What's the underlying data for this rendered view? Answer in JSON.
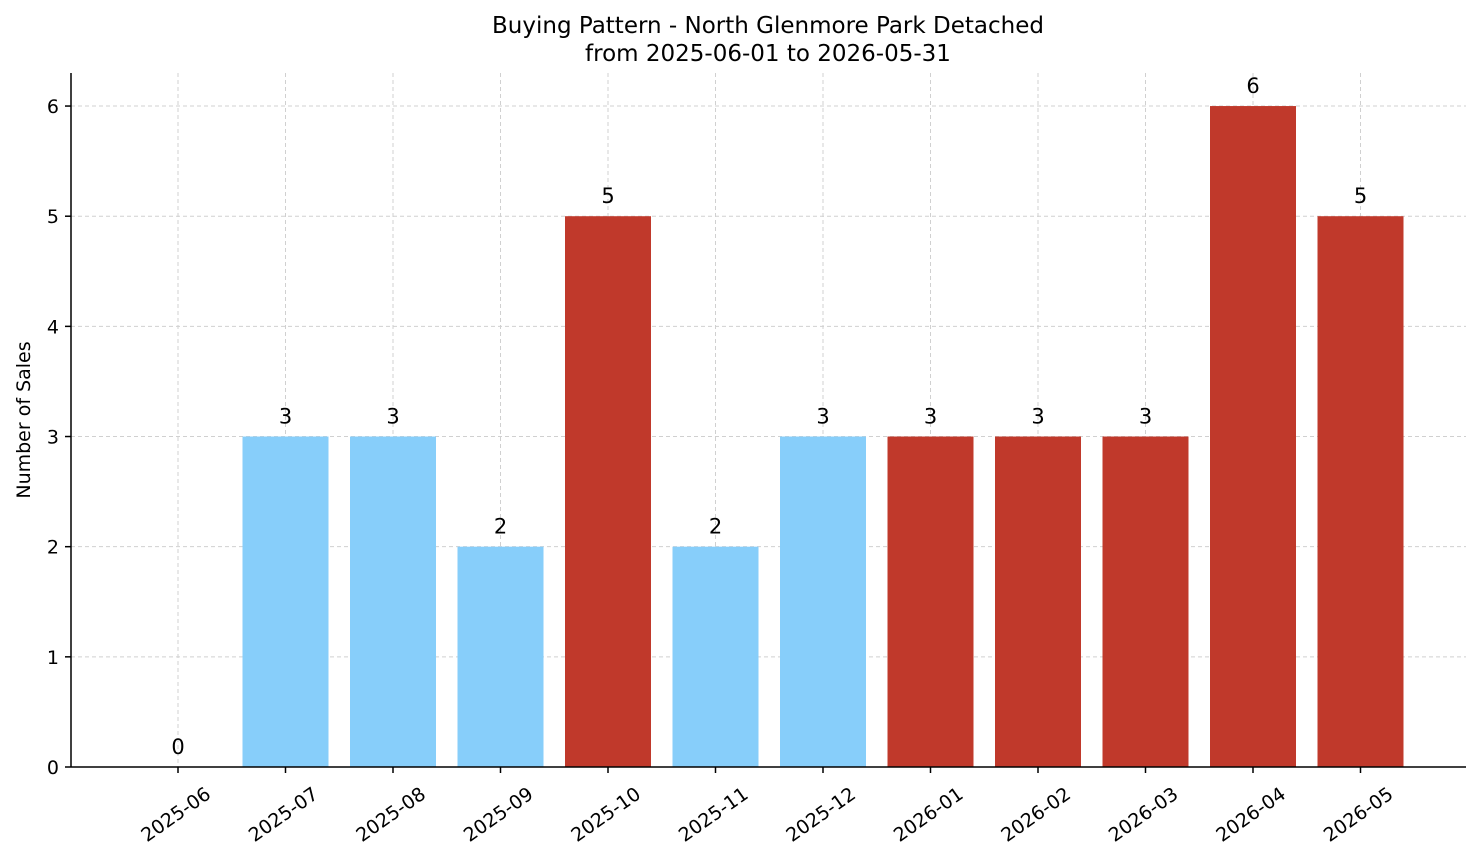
{
  "chart_data": {
    "type": "bar",
    "title": "Buying Pattern - North Glenmore Park Detached",
    "subtitle": "from 2025-06-01 to 2026-05-31",
    "xlabel": "",
    "ylabel": "Number of Sales",
    "categories": [
      "2025-06",
      "2025-07",
      "2025-08",
      "2025-09",
      "2025-10",
      "2025-11",
      "2025-12",
      "2026-01",
      "2026-02",
      "2026-03",
      "2026-04",
      "2026-05"
    ],
    "values": [
      0,
      3,
      3,
      2,
      5,
      2,
      3,
      3,
      3,
      3,
      6,
      5
    ],
    "bar_colors": [
      "#87cefa",
      "#87cefa",
      "#87cefa",
      "#87cefa",
      "#c0392b",
      "#87cefa",
      "#87cefa",
      "#c0392b",
      "#c0392b",
      "#c0392b",
      "#c0392b",
      "#c0392b"
    ],
    "ylim": [
      0,
      6.3
    ],
    "yticks": [
      0,
      1,
      2,
      3,
      4,
      5,
      6
    ],
    "grid": true,
    "data_labels": true
  }
}
